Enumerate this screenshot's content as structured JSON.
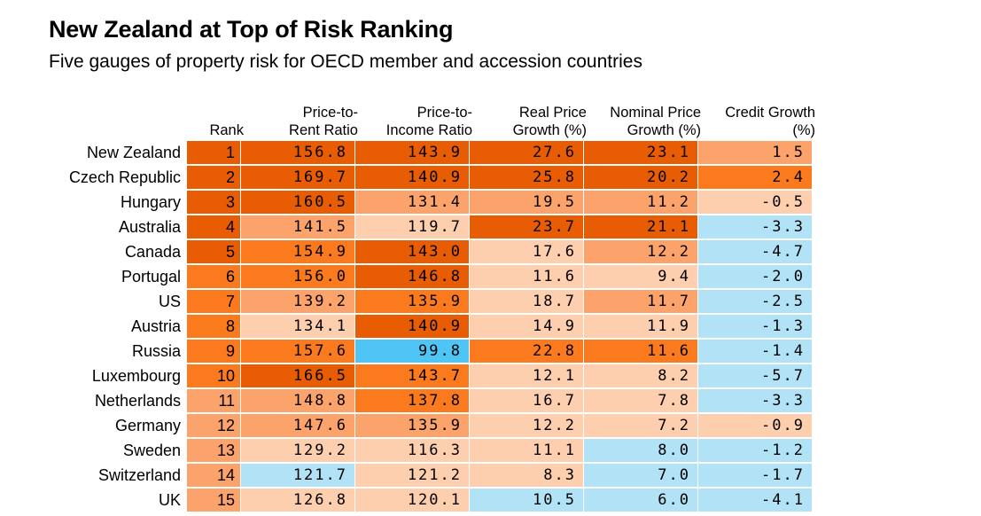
{
  "title": "New Zealand at Top of Risk Ranking",
  "subtitle": "Five gauges of property risk for OECD member and accession countries",
  "colors": {
    "dark_orange": "#e85d04",
    "orange": "#fb7a1e",
    "light_orange": "#fca36b",
    "pale_orange": "#fdcfae",
    "light_blue": "#b2e2f6",
    "blue": "#4ec5f5"
  },
  "chart_data": {
    "type": "table",
    "columns": [
      {
        "key": "rank",
        "label": [
          "Rank"
        ]
      },
      {
        "key": "price_to_rent",
        "label": [
          "Price-to-",
          "Rent Ratio"
        ]
      },
      {
        "key": "price_to_income",
        "label": [
          "Price-to-",
          "Income Ratio"
        ]
      },
      {
        "key": "real_price_growth",
        "label": [
          "Real Price",
          "Growth (%)"
        ]
      },
      {
        "key": "nominal_price_growth",
        "label": [
          "Nominal Price",
          "Growth (%)"
        ]
      },
      {
        "key": "credit_growth",
        "label": [
          "Credit Growth",
          "(%)"
        ]
      }
    ],
    "rows": [
      {
        "country": "New Zealand",
        "rank": 1,
        "values": [
          "156.8",
          "143.9",
          "27.6",
          "23.1",
          "1.5"
        ],
        "shades": [
          "dark_orange",
          "dark_orange",
          "dark_orange",
          "dark_orange",
          "dark_orange",
          "light_orange"
        ]
      },
      {
        "country": "Czech Republic",
        "rank": 2,
        "values": [
          "169.7",
          "140.9",
          "25.8",
          "20.2",
          "2.4"
        ],
        "shades": [
          "dark_orange",
          "dark_orange",
          "dark_orange",
          "dark_orange",
          "dark_orange",
          "orange"
        ]
      },
      {
        "country": "Hungary",
        "rank": 3,
        "values": [
          "160.5",
          "131.4",
          "19.5",
          "11.2",
          "-0.5"
        ],
        "shades": [
          "dark_orange",
          "dark_orange",
          "light_orange",
          "light_orange",
          "light_orange",
          "pale_orange"
        ]
      },
      {
        "country": "Australia",
        "rank": 4,
        "values": [
          "141.5",
          "119.7",
          "23.7",
          "21.1",
          "-3.3"
        ],
        "shades": [
          "dark_orange",
          "light_orange",
          "pale_orange",
          "dark_orange",
          "dark_orange",
          "light_blue"
        ]
      },
      {
        "country": "Canada",
        "rank": 5,
        "values": [
          "154.9",
          "143.0",
          "17.6",
          "12.2",
          "-4.7"
        ],
        "shades": [
          "dark_orange",
          "orange",
          "dark_orange",
          "pale_orange",
          "light_orange",
          "light_blue"
        ]
      },
      {
        "country": "Portugal",
        "rank": 6,
        "values": [
          "156.0",
          "146.8",
          "11.6",
          "9.4",
          "-2.0"
        ],
        "shades": [
          "orange",
          "orange",
          "dark_orange",
          "pale_orange",
          "pale_orange",
          "light_blue"
        ]
      },
      {
        "country": "US",
        "rank": 7,
        "values": [
          "139.2",
          "135.9",
          "18.7",
          "11.7",
          "-2.5"
        ],
        "shades": [
          "orange",
          "light_orange",
          "orange",
          "pale_orange",
          "light_orange",
          "light_blue"
        ]
      },
      {
        "country": "Austria",
        "rank": 8,
        "values": [
          "134.1",
          "140.9",
          "14.9",
          "11.9",
          "-1.3"
        ],
        "shades": [
          "orange",
          "pale_orange",
          "dark_orange",
          "pale_orange",
          "pale_orange",
          "light_blue"
        ]
      },
      {
        "country": "Russia",
        "rank": 9,
        "values": [
          "157.6",
          "99.8",
          "22.8",
          "11.6",
          "-1.4"
        ],
        "shades": [
          "orange",
          "orange",
          "blue",
          "orange",
          "orange",
          "light_blue"
        ]
      },
      {
        "country": "Luxembourg",
        "rank": 10,
        "values": [
          "166.5",
          "143.7",
          "12.1",
          "8.2",
          "-5.7"
        ],
        "shades": [
          "orange",
          "dark_orange",
          "orange",
          "pale_orange",
          "pale_orange",
          "light_blue"
        ]
      },
      {
        "country": "Netherlands",
        "rank": 11,
        "values": [
          "148.8",
          "137.8",
          "16.7",
          "7.8",
          "-3.3"
        ],
        "shades": [
          "light_orange",
          "light_orange",
          "orange",
          "pale_orange",
          "pale_orange",
          "light_blue"
        ]
      },
      {
        "country": "Germany",
        "rank": 12,
        "values": [
          "147.6",
          "135.9",
          "12.2",
          "7.2",
          "-0.9"
        ],
        "shades": [
          "light_orange",
          "light_orange",
          "light_orange",
          "pale_orange",
          "pale_orange",
          "pale_orange"
        ]
      },
      {
        "country": "Sweden",
        "rank": 13,
        "values": [
          "129.2",
          "116.3",
          "11.1",
          "8.0",
          "-1.2"
        ],
        "shades": [
          "light_orange",
          "pale_orange",
          "pale_orange",
          "pale_orange",
          "light_blue",
          "light_blue"
        ]
      },
      {
        "country": "Switzerland",
        "rank": 14,
        "values": [
          "121.7",
          "121.2",
          "8.3",
          "7.0",
          "-1.7"
        ],
        "shades": [
          "light_orange",
          "light_blue",
          "pale_orange",
          "pale_orange",
          "light_blue",
          "light_blue"
        ]
      },
      {
        "country": "UK",
        "rank": 15,
        "values": [
          "126.8",
          "120.1",
          "10.5",
          "6.0",
          "-4.1"
        ],
        "shades": [
          "light_orange",
          "pale_orange",
          "pale_orange",
          "light_blue",
          "light_blue",
          "light_blue"
        ]
      }
    ]
  }
}
